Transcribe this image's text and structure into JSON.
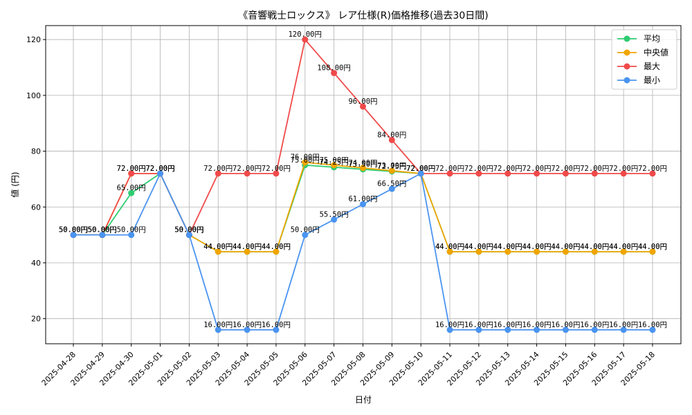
{
  "chart_data": {
    "type": "line",
    "title": "《音響戦士ロックス》 レア仕様(R)価格推移(過去30日間)",
    "xlabel": "日付",
    "ylabel": "値 (円)",
    "ylim": [
      11,
      125
    ],
    "yticks": [
      20,
      40,
      60,
      80,
      100,
      120
    ],
    "grid": true,
    "legend_position": "top-right",
    "label_suffix": "円",
    "categories": [
      "2025-04-28",
      "2025-04-29",
      "2025-04-30",
      "2025-05-01",
      "2025-05-02",
      "2025-05-03",
      "2025-05-04",
      "2025-05-05",
      "2025-05-06",
      "2025-05-07",
      "2025-05-08",
      "2025-05-09",
      "2025-05-10",
      "2025-05-11",
      "2025-05-12",
      "2025-05-13",
      "2025-05-14",
      "2025-05-15",
      "2025-05-16",
      "2025-05-17",
      "2025-05-18"
    ],
    "series": [
      {
        "name": "平均",
        "color": "#2ecc71",
        "values": [
          50,
          50,
          65,
          72,
          50,
          44,
          44,
          44,
          75,
          74.25,
          73.5,
          72.75,
          72,
          44,
          44,
          44,
          44,
          44,
          44,
          44,
          44
        ]
      },
      {
        "name": "中央値",
        "color": "#f0a500",
        "values": [
          50,
          50,
          72,
          72,
          50,
          44,
          44,
          44,
          76,
          75,
          74,
          73,
          72,
          44,
          44,
          44,
          44,
          44,
          44,
          44,
          44
        ]
      },
      {
        "name": "最大",
        "color": "#f04a4a",
        "values": [
          50,
          50,
          72,
          72,
          50,
          72,
          72,
          72,
          120,
          108,
          96,
          84,
          72,
          72,
          72,
          72,
          72,
          72,
          72,
          72,
          72
        ]
      },
      {
        "name": "最小",
        "color": "#4a94f0",
        "values": [
          50,
          50,
          50,
          72,
          50,
          16,
          16,
          16,
          50,
          55.5,
          61,
          66.5,
          72,
          16,
          16,
          16,
          16,
          16,
          16,
          16,
          16
        ]
      }
    ]
  }
}
